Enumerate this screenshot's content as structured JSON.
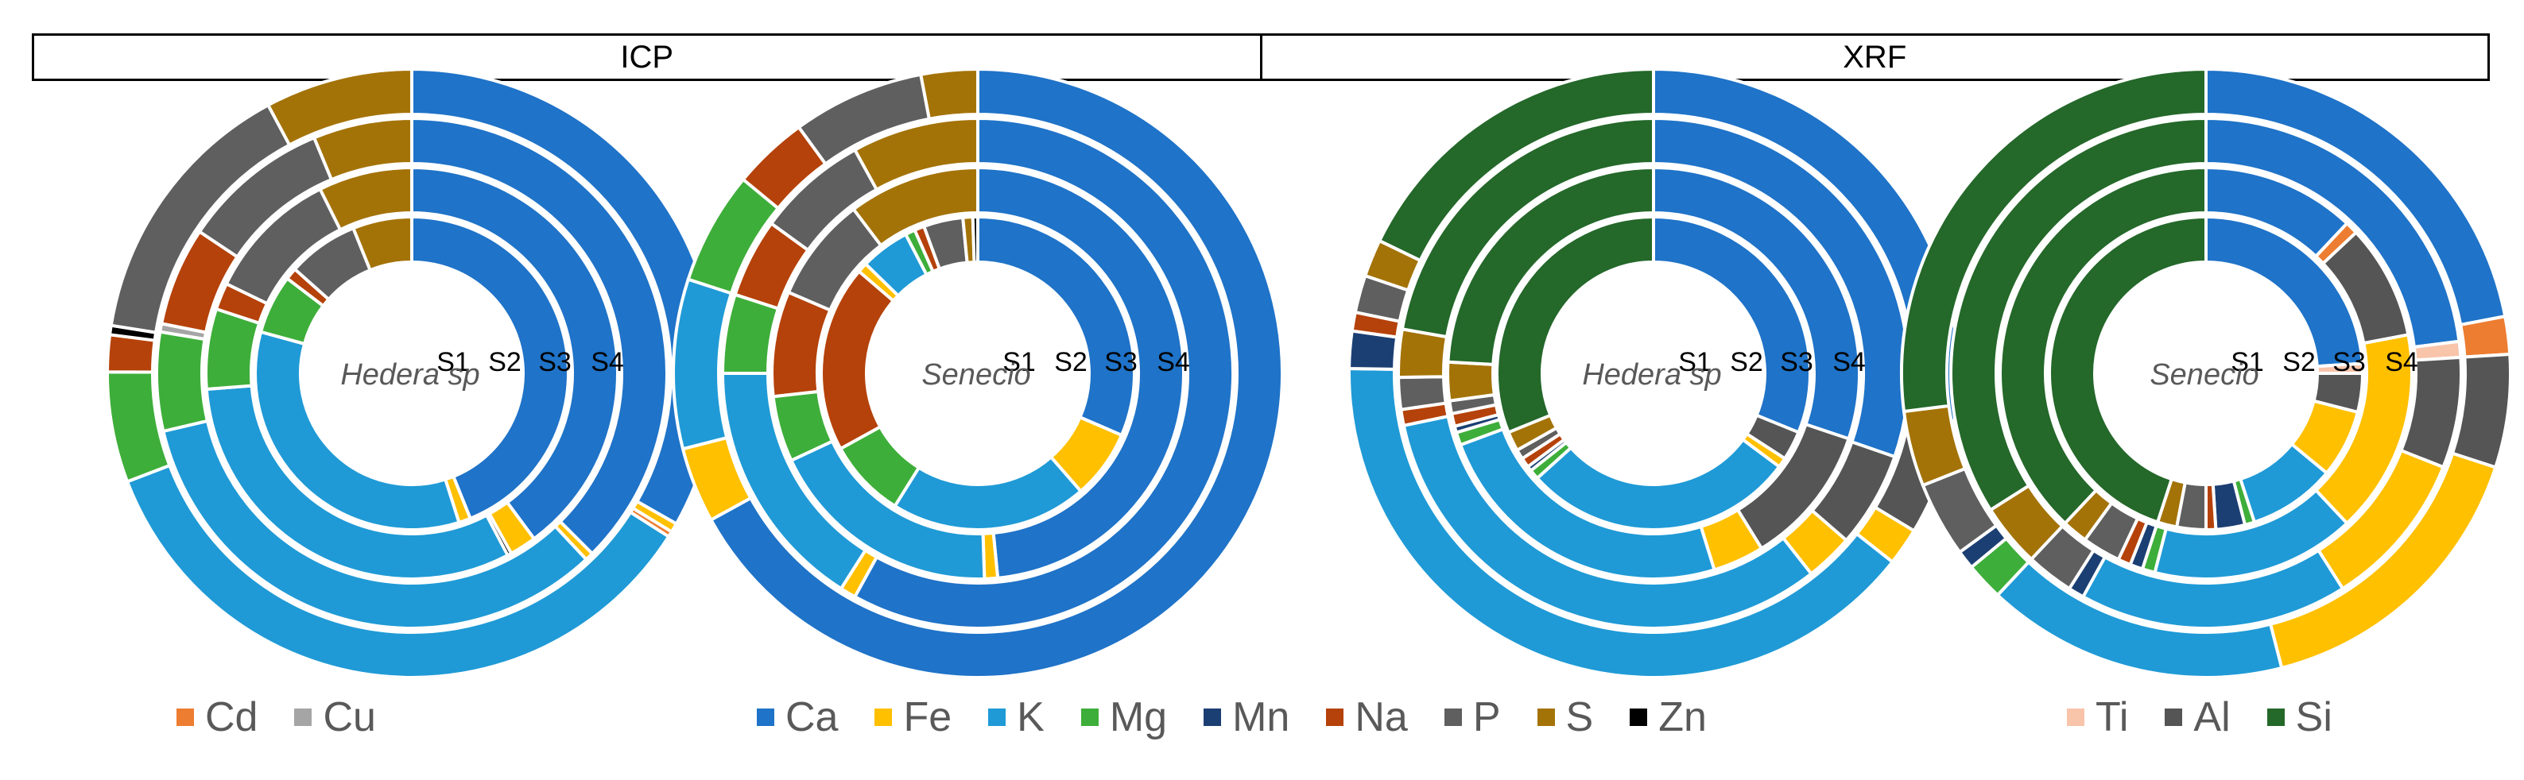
{
  "header": {
    "left_label": "ICP",
    "right_label": "XRF"
  },
  "colors": {
    "Cd": "#ED7D31",
    "Cu": "#A5A5A5",
    "Ca": "#1F73C8",
    "Fe": "#FFC000",
    "K": "#1F9AD6",
    "Mg": "#3EAE3A",
    "Mn": "#1B3F73",
    "Na": "#B5420A",
    "P": "#5F5F5F",
    "S": "#A47308",
    "Zn": "#000000",
    "Ti": "#F8C4AA",
    "Al": "#555555",
    "Si": "#24682A"
  },
  "legend": {
    "group1": [
      {
        "key": "Cd",
        "label": "Cd"
      },
      {
        "key": "Cu",
        "label": "Cu"
      }
    ],
    "group2": [
      {
        "key": "Ca",
        "label": "Ca"
      },
      {
        "key": "Fe",
        "label": "Fe"
      },
      {
        "key": "K",
        "label": "K"
      },
      {
        "key": "Mg",
        "label": "Mg"
      },
      {
        "key": "Mn",
        "label": "Mn"
      },
      {
        "key": "Na",
        "label": "Na"
      },
      {
        "key": "P",
        "label": "P"
      },
      {
        "key": "S",
        "label": "S"
      },
      {
        "key": "Zn",
        "label": "Zn"
      }
    ],
    "group3": [
      {
        "key": "Ti",
        "label": "Ti"
      },
      {
        "key": "Al",
        "label": "Al"
      },
      {
        "key": "Si",
        "label": "Si"
      }
    ]
  },
  "chart_data": [
    {
      "type": "donut",
      "method": "ICP",
      "center_label": "Hedera sp",
      "ring_labels": [
        "S1",
        "S2",
        "S3",
        "S4"
      ],
      "rings": [
        {
          "name": "S1",
          "slices": [
            [
              "Ca",
              36
            ],
            [
              "Fe",
              1
            ],
            [
              "K",
              28
            ],
            [
              "Mg",
              5
            ],
            [
              "Na",
              1
            ],
            [
              "P",
              6
            ],
            [
              "S",
              5
            ]
          ]
        },
        {
          "name": "S2",
          "slices": [
            [
              "Ca",
              38
            ],
            [
              "Fe",
              2
            ],
            [
              "Zn",
              0.3
            ],
            [
              "K",
              30
            ],
            [
              "Mg",
              6
            ],
            [
              "Na",
              2
            ],
            [
              "P",
              10
            ],
            [
              "S",
              7
            ]
          ]
        },
        {
          "name": "S3",
          "slices": [
            [
              "Ca",
              36
            ],
            [
              "Fe",
              0.5
            ],
            [
              "K",
              32
            ],
            [
              "Mg",
              6
            ],
            [
              "Cu",
              0.5
            ],
            [
              "Na",
              6
            ],
            [
              "P",
              9
            ],
            [
              "S",
              6
            ]
          ]
        },
        {
          "name": "S4",
          "slices": [
            [
              "Ca",
              34
            ],
            [
              "Fe",
              0.5
            ],
            [
              "Cd",
              0.3
            ],
            [
              "K",
              36
            ],
            [
              "Mg",
              6
            ],
            [
              "Na",
              2
            ],
            [
              "Zn",
              0.5
            ],
            [
              "P",
              15
            ],
            [
              "S",
              8
            ]
          ]
        }
      ]
    },
    {
      "type": "donut",
      "method": "ICP",
      "center_label": "Senecio",
      "ring_labels": [
        "S1",
        "S2",
        "S3",
        "S4"
      ],
      "rings": [
        {
          "name": "S1",
          "slices": [
            [
              "Ca",
              31
            ],
            [
              "Fe",
              7
            ],
            [
              "K",
              20
            ],
            [
              "Mg",
              8
            ],
            [
              "Na",
              19
            ],
            [
              "Fe",
              1
            ],
            [
              "K",
              5
            ],
            [
              "Mg",
              1
            ],
            [
              "Na",
              1
            ],
            [
              "P",
              4
            ],
            [
              "S",
              1
            ],
            [
              "Zn",
              0.5
            ]
          ]
        },
        {
          "name": "S2",
          "slices": [
            [
              "Ca",
              47
            ],
            [
              "Fe",
              1
            ],
            [
              "K",
              18
            ],
            [
              "Mg",
              5
            ],
            [
              "Na",
              8
            ],
            [
              "P",
              8
            ],
            [
              "S",
              10
            ]
          ]
        },
        {
          "name": "S3",
          "slices": [
            [
              "Ca",
              58
            ],
            [
              "Fe",
              1
            ],
            [
              "K",
              16
            ],
            [
              "Mg",
              5
            ],
            [
              "Na",
              5
            ],
            [
              "P",
              7
            ],
            [
              "S",
              8
            ]
          ]
        },
        {
          "name": "S4",
          "slices": [
            [
              "Ca",
              67
            ],
            [
              "Fe",
              4
            ],
            [
              "K",
              9
            ],
            [
              "Mg",
              6
            ],
            [
              "Na",
              4
            ],
            [
              "P",
              7
            ],
            [
              "S",
              3
            ]
          ]
        }
      ]
    },
    {
      "type": "donut",
      "method": "XRF",
      "center_label": "Hedera sp",
      "ring_labels": [
        "S1",
        "S2",
        "S3",
        "S4"
      ],
      "rings": [
        {
          "name": "S1",
          "slices": [
            [
              "Ca",
              31
            ],
            [
              "Al",
              3
            ],
            [
              "Fe",
              1
            ],
            [
              "K",
              28
            ],
            [
              "Mg",
              1
            ],
            [
              "Mn",
              0.5
            ],
            [
              "Na",
              1
            ],
            [
              "P",
              1
            ],
            [
              "S",
              2
            ],
            [
              "Si",
              31
            ]
          ]
        },
        {
          "name": "S2",
          "slices": [
            [
              "Ca",
              30
            ],
            [
              "Al",
              11
            ],
            [
              "Fe",
              4
            ],
            [
              "K",
              24
            ],
            [
              "Mg",
              1
            ],
            [
              "Mn",
              0.5
            ],
            [
              "Na",
              1
            ],
            [
              "P",
              1
            ],
            [
              "S",
              3
            ],
            [
              "Si",
              24
            ]
          ]
        },
        {
          "name": "S3",
          "slices": [
            [
              "Ca",
              30
            ],
            [
              "Al",
              6
            ],
            [
              "Fe",
              3
            ],
            [
              "K",
              32
            ],
            [
              "Na",
              1
            ],
            [
              "P",
              2
            ],
            [
              "S",
              3
            ],
            [
              "Si",
              22
            ]
          ]
        },
        {
          "name": "S4",
          "slices": [
            [
              "Ca",
              28
            ],
            [
              "Al",
              6
            ],
            [
              "Fe",
              2
            ],
            [
              "K",
              40
            ],
            [
              "Mn",
              2
            ],
            [
              "Na",
              1
            ],
            [
              "P",
              2
            ],
            [
              "S",
              2
            ],
            [
              "Si",
              18
            ]
          ]
        }
      ]
    },
    {
      "type": "donut",
      "method": "XRF",
      "center_label": "Senecio",
      "ring_labels": [
        "S1",
        "S2",
        "S3",
        "S4"
      ],
      "rings": [
        {
          "name": "S1",
          "slices": [
            [
              "Ca",
              24
            ],
            [
              "Ti",
              1
            ],
            [
              "Al",
              4
            ],
            [
              "Fe",
              7
            ],
            [
              "K",
              9
            ],
            [
              "Mg",
              1
            ],
            [
              "Mn",
              3
            ],
            [
              "Na",
              1
            ],
            [
              "P",
              3
            ],
            [
              "S",
              2
            ],
            [
              "Si",
              45
            ]
          ]
        },
        {
          "name": "S2",
          "slices": [
            [
              "Ca",
              12
            ],
            [
              "Cd",
              1
            ],
            [
              "Al",
              9
            ],
            [
              "Fe",
              16
            ],
            [
              "K",
              16
            ],
            [
              "Mg",
              1
            ],
            [
              "Mn",
              1
            ],
            [
              "Na",
              1
            ],
            [
              "P",
              3
            ],
            [
              "S",
              2
            ],
            [
              "Si",
              38
            ]
          ]
        },
        {
          "name": "S3",
          "slices": [
            [
              "Ca",
              23
            ],
            [
              "Ti",
              1
            ],
            [
              "Al",
              7
            ],
            [
              "Fe",
              10
            ],
            [
              "K",
              17
            ],
            [
              "Mn",
              1
            ],
            [
              "P",
              3
            ],
            [
              "S",
              4
            ],
            [
              "Si",
              34
            ]
          ]
        },
        {
          "name": "S4",
          "slices": [
            [
              "Ca",
              22
            ],
            [
              "Cd",
              2
            ],
            [
              "Al",
              6
            ],
            [
              "Fe",
              16
            ],
            [
              "K",
              16
            ],
            [
              "Mg",
              2
            ],
            [
              "Mn",
              1
            ],
            [
              "P",
              4
            ],
            [
              "S",
              4
            ],
            [
              "Si",
              27
            ]
          ]
        }
      ]
    }
  ]
}
